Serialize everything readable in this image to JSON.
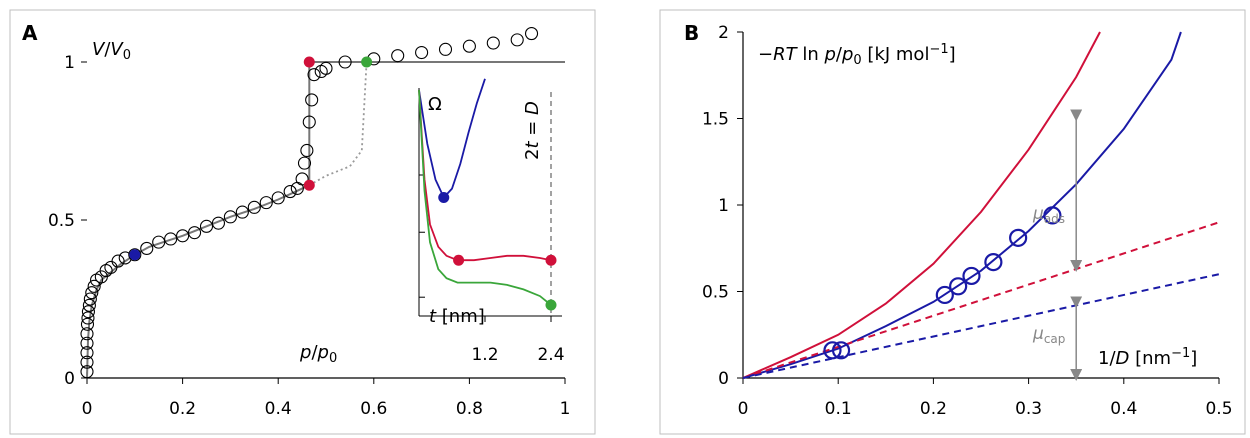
{
  "colors": {
    "blue": "#1a1aa6",
    "red": "#d0103a",
    "green": "#3aa63a",
    "gray": "#777777",
    "lightgray": "#999999"
  },
  "chart_data": [
    {
      "panel": "A",
      "type": "line",
      "xlabel": "p/p0",
      "ylabel": "V/V0",
      "xlim": [
        0,
        1
      ],
      "ylim": [
        0,
        1.08
      ],
      "xticks": [
        "0",
        "0.2",
        "0.4",
        "0.6",
        "0.8",
        "1"
      ],
      "xtick_values": [
        0,
        0.2,
        0.4,
        0.6,
        0.8,
        1
      ],
      "yticks": [
        "0",
        "0.5",
        "1"
      ],
      "ytick_values": [
        0,
        0.5,
        1
      ],
      "isotherm_curve": {
        "x": [
          0.0,
          0.002,
          0.005,
          0.01,
          0.02,
          0.03,
          0.05,
          0.07,
          0.1,
          0.13,
          0.16,
          0.2,
          0.25,
          0.3,
          0.35,
          0.4,
          0.43,
          0.465
        ],
        "y": [
          0.0,
          0.12,
          0.18,
          0.23,
          0.28,
          0.31,
          0.335,
          0.36,
          0.39,
          0.415,
          0.43,
          0.45,
          0.48,
          0.51,
          0.535,
          0.565,
          0.585,
          0.61
        ]
      },
      "jump": {
        "x": 0.465,
        "y_from": 0.61,
        "y_to": 1.0,
        "x_end": 1.0
      },
      "dotted_metastable": {
        "x": [
          0.465,
          0.5,
          0.55,
          0.575,
          0.585
        ],
        "y": [
          0.61,
          0.64,
          0.67,
          0.72,
          1.0
        ]
      },
      "open_circles": {
        "x": [
          0.0,
          0.0,
          0.0,
          0.0,
          0.0,
          0.001,
          0.002,
          0.003,
          0.005,
          0.007,
          0.01,
          0.015,
          0.02,
          0.03,
          0.04,
          0.05,
          0.065,
          0.08,
          0.1,
          0.125,
          0.15,
          0.175,
          0.2,
          0.225,
          0.25,
          0.275,
          0.3,
          0.325,
          0.35,
          0.375,
          0.4,
          0.425,
          0.44,
          0.45,
          0.455,
          0.46,
          0.465,
          0.47,
          0.475,
          0.49,
          0.5,
          0.54,
          0.6,
          0.65,
          0.7,
          0.75,
          0.8,
          0.85,
          0.9,
          0.93
        ],
        "y": [
          0.02,
          0.05,
          0.08,
          0.11,
          0.14,
          0.17,
          0.19,
          0.21,
          0.23,
          0.25,
          0.27,
          0.29,
          0.31,
          0.32,
          0.34,
          0.35,
          0.37,
          0.38,
          0.39,
          0.41,
          0.43,
          0.44,
          0.45,
          0.46,
          0.48,
          0.49,
          0.51,
          0.525,
          0.54,
          0.555,
          0.57,
          0.59,
          0.6,
          0.63,
          0.68,
          0.72,
          0.81,
          0.88,
          0.96,
          0.97,
          0.98,
          1.0,
          1.01,
          1.02,
          1.03,
          1.04,
          1.05,
          1.06,
          1.07,
          1.09
        ]
      },
      "markers": [
        {
          "x": 0.1,
          "y": 0.39,
          "color": "blue"
        },
        {
          "x": 0.465,
          "y": 0.61,
          "color": "red"
        },
        {
          "x": 0.465,
          "y": 1.0,
          "color": "red"
        },
        {
          "x": 0.585,
          "y": 1.0,
          "color": "green"
        }
      ],
      "inset": {
        "type": "line",
        "xlabel": "t [nm]",
        "ylabel": "Ω",
        "xlim": [
          0,
          2.6
        ],
        "ylim": [
          0,
          1.05
        ],
        "xticks": [
          "1.2",
          "2.4"
        ],
        "xtick_values": [
          1.2,
          2.4
        ],
        "vertical_label": "2t = D",
        "vertical_x": 2.4,
        "series": [
          {
            "color": "blue",
            "x": [
              0.0,
              0.15,
              0.3,
              0.45,
              0.6,
              0.75,
              0.9,
              1.05,
              1.2
            ],
            "y": [
              1.0,
              0.76,
              0.6,
              0.52,
              0.56,
              0.67,
              0.81,
              0.94,
              1.05
            ]
          },
          {
            "color": "red",
            "x": [
              0.0,
              0.1,
              0.2,
              0.35,
              0.5,
              0.7,
              1.0,
              1.3,
              1.6,
              1.9,
              2.2,
              2.4
            ],
            "y": [
              1.0,
              0.6,
              0.4,
              0.3,
              0.26,
              0.24,
              0.24,
              0.25,
              0.26,
              0.26,
              0.25,
              0.24
            ]
          },
          {
            "color": "green",
            "x": [
              0.0,
              0.1,
              0.2,
              0.35,
              0.5,
              0.7,
              1.0,
              1.3,
              1.6,
              1.9,
              2.2,
              2.4
            ],
            "y": [
              1.0,
              0.55,
              0.32,
              0.2,
              0.16,
              0.14,
              0.14,
              0.14,
              0.13,
              0.11,
              0.08,
              0.04
            ]
          }
        ],
        "markers": [
          {
            "x": 0.45,
            "y": 0.52,
            "color": "blue"
          },
          {
            "x": 0.72,
            "y": 0.24,
            "color": "red"
          },
          {
            "x": 2.4,
            "y": 0.24,
            "color": "red"
          },
          {
            "x": 2.4,
            "y": 0.04,
            "color": "green"
          }
        ]
      }
    },
    {
      "panel": "B",
      "type": "line",
      "ylabel": "−RT ln p/p0 [kJ mol−1]",
      "xlabel": "1/D [nm−1]",
      "xlim": [
        0,
        0.5
      ],
      "ylim": [
        0,
        2
      ],
      "xticks": [
        "0",
        "0.1",
        "0.2",
        "0.3",
        "0.4",
        "0.5"
      ],
      "xtick_values": [
        0,
        0.1,
        0.2,
        0.3,
        0.4,
        0.5
      ],
      "yticks": [
        "0",
        "0.5",
        "1",
        "1.5",
        "2"
      ],
      "ytick_values": [
        0,
        0.5,
        1,
        1.5,
        2
      ],
      "series": [
        {
          "color": "red",
          "style": "solid",
          "x": [
            0.0,
            0.05,
            0.1,
            0.15,
            0.2,
            0.25,
            0.3,
            0.35,
            0.375
          ],
          "y": [
            0.0,
            0.12,
            0.25,
            0.43,
            0.66,
            0.96,
            1.32,
            1.74,
            2.0
          ]
        },
        {
          "color": "blue",
          "style": "solid",
          "x": [
            0.0,
            0.05,
            0.1,
            0.15,
            0.2,
            0.25,
            0.3,
            0.35,
            0.4,
            0.45,
            0.46
          ],
          "y": [
            0.0,
            0.08,
            0.17,
            0.3,
            0.44,
            0.62,
            0.85,
            1.12,
            1.44,
            1.84,
            2.0
          ]
        },
        {
          "color": "red",
          "style": "dashed",
          "x": [
            0.0,
            0.5
          ],
          "y": [
            0.0,
            0.9
          ]
        },
        {
          "color": "blue",
          "style": "dashed",
          "x": [
            0.0,
            0.5
          ],
          "y": [
            0.0,
            0.6
          ]
        }
      ],
      "open_circles": {
        "color": "blue",
        "x": [
          0.094,
          0.103,
          0.212,
          0.226,
          0.24,
          0.263,
          0.289,
          0.325
        ],
        "y": [
          0.16,
          0.16,
          0.48,
          0.53,
          0.59,
          0.67,
          0.81,
          0.94
        ]
      },
      "arrows": {
        "x": 0.35,
        "y_blue": 1.5,
        "y_reddash": 0.63,
        "y_bluedash": 0.63,
        "y_zero": 0.0,
        "y_bluedash_at_x": 0.42
      },
      "annotations": {
        "mu_ads": "μads",
        "mu_cap": "μcap"
      }
    }
  ],
  "labels": {
    "panel_a": "A",
    "panel_b": "B"
  }
}
